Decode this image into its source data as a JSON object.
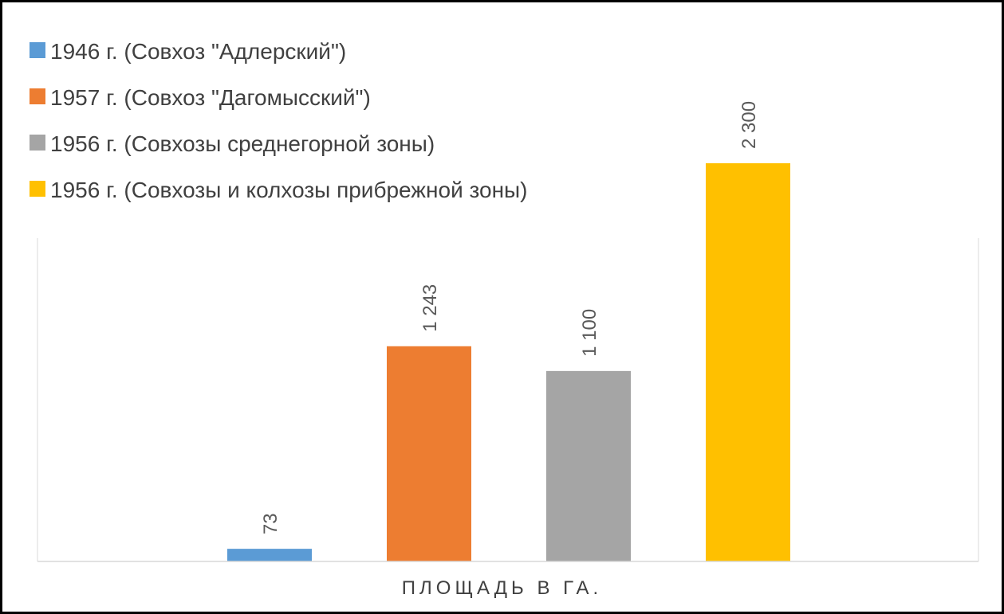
{
  "chart_data": {
    "type": "bar",
    "categories": [
      "Площадь в га."
    ],
    "xlabel": "ПЛОЩАДЬ В ГА.",
    "ylim": [
      0,
      2500
    ],
    "grid": false,
    "legend_position": "top-left",
    "series": [
      {
        "name": "1946 г. (Совхоз \"Адлерский\")",
        "values": [
          73
        ],
        "label": "73",
        "color": "#5B9BD5"
      },
      {
        "name": "1957 г. (Совхоз \"Дагомысский\")",
        "values": [
          1243
        ],
        "label": "1 243",
        "color": "#ED7D31"
      },
      {
        "name": "1956 г. (Совхозы среднегорной зоны)",
        "values": [
          1100
        ],
        "label": "1 100",
        "color": "#A5A5A5"
      },
      {
        "name": "1956 г. (Совхозы и колхозы прибрежной зоны)",
        "values": [
          2300
        ],
        "label": "2 300",
        "color": "#FFC000"
      }
    ]
  }
}
